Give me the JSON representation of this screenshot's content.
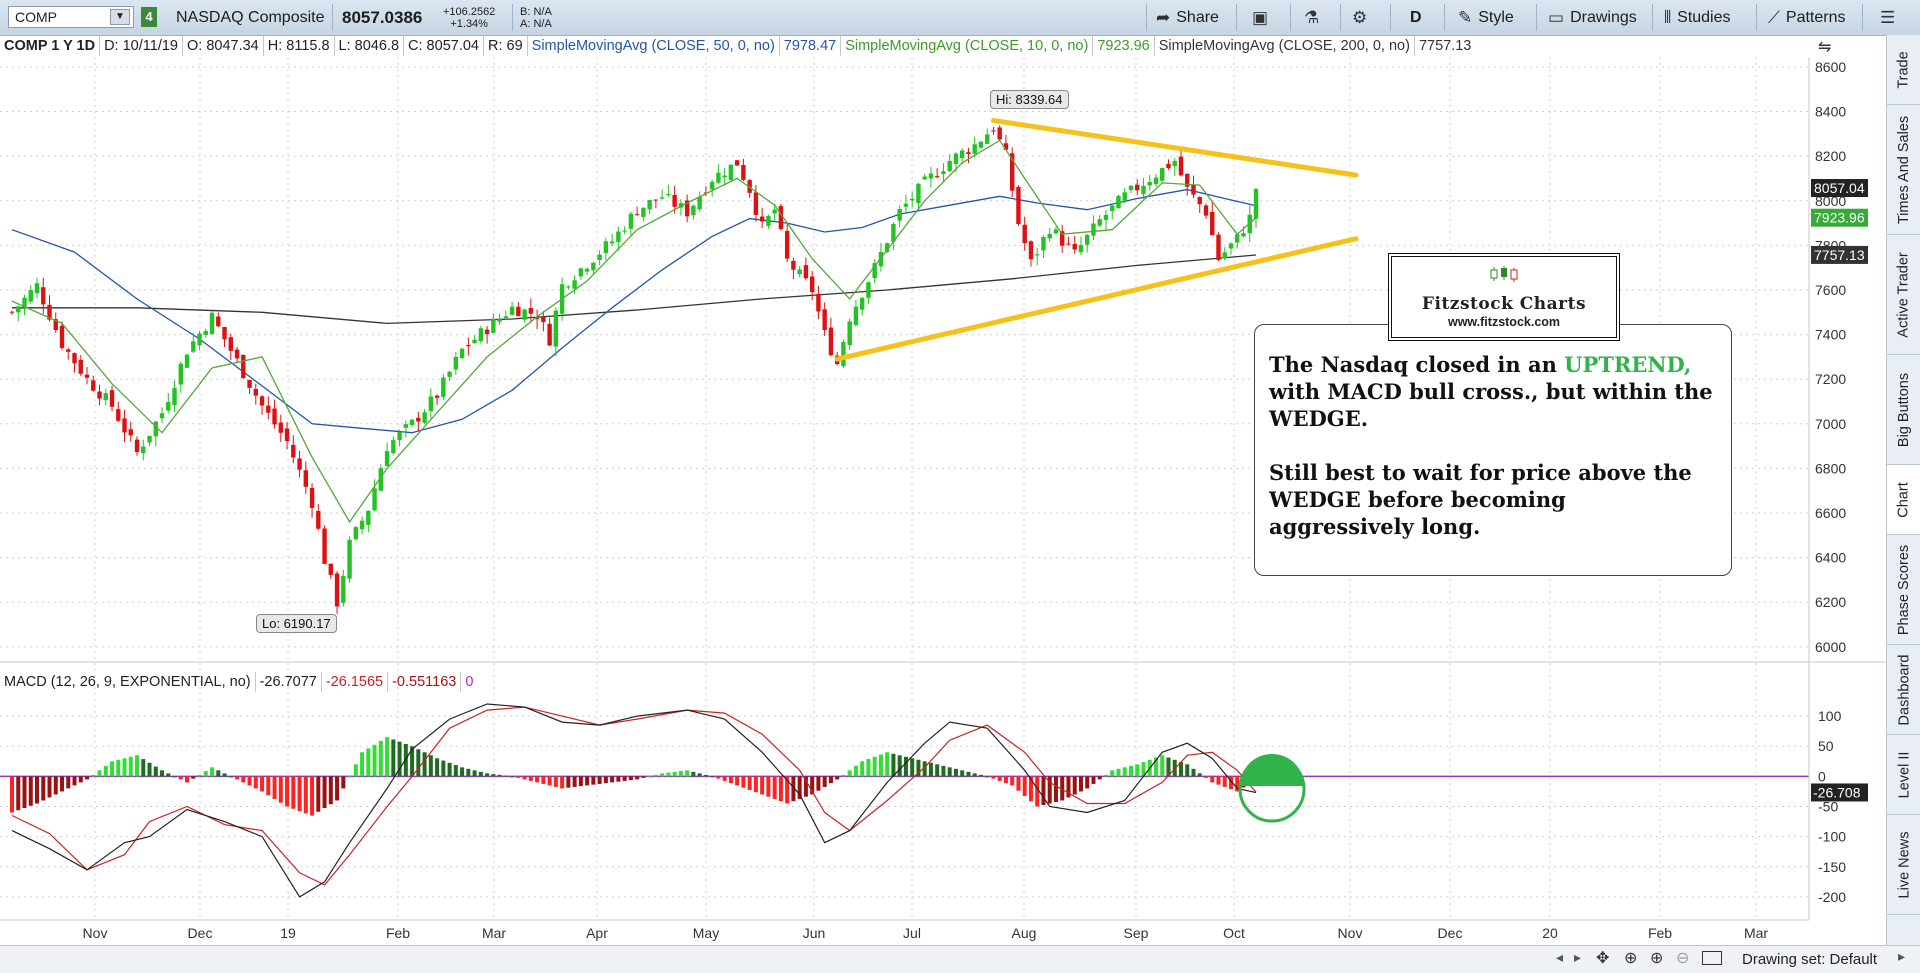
{
  "header": {
    "symbol": "COMP",
    "link_number": "4",
    "description": "NASDAQ Composite",
    "last_price": "8057.0386",
    "change_abs": "+106.2562",
    "change_pct": "+1.34%",
    "bid": "B: N/A",
    "ask": "A: N/A",
    "share_label": "Share",
    "period_label": "D",
    "style_label": "Style",
    "drawings_label": "Drawings",
    "studies_label": "Studies",
    "patterns_label": "Patterns"
  },
  "info": {
    "title": "COMP 1 Y 1D",
    "date": "D: 10/11/19",
    "open": "O: 8047.34",
    "high": "H: 8115.8",
    "low": "L: 8046.8",
    "close": "C: 8057.04",
    "range": "R: 69",
    "sma50_label": "SimpleMovingAvg (CLOSE, 50, 0, no)",
    "sma50_value": "7978.47",
    "sma10_label": "SimpleMovingAvg (CLOSE, 10, 0, no)",
    "sma10_value": "7923.96",
    "sma200_label": "SimpleMovingAvg (CLOSE, 200, 0, no)",
    "sma200_value": "7757.13"
  },
  "macd_info": {
    "label": "MACD (12, 26, 9, EXPONENTIAL, no)",
    "value": "-26.7077",
    "avg": "-26.1565",
    "diff": "-0.551163",
    "zero": "0"
  },
  "annotation": {
    "line1_pre": "The Nasdaq closed in an ",
    "line1_highlight": "UPTREND,",
    "line2": "with MACD bull cross., but within the WEDGE.",
    "line3": "Still best to wait for price above the WEDGE before becoming aggressively long."
  },
  "logo": {
    "title": "Fitzstock Charts",
    "url": "www.fitzstock.com"
  },
  "right_tabs": [
    "Trade",
    "Times And Sales",
    "Active Trader",
    "Big Buttons",
    "Chart",
    "Phase Scores",
    "Dashboard",
    "Level II",
    "Live News"
  ],
  "active_tab": "Chart",
  "bottom": {
    "drawing_set": "Drawing set: Default"
  },
  "colors": {
    "up": "#22c322",
    "down": "#dd1111",
    "sma50": "#2255aa",
    "sma10": "#55a83a",
    "sma200": "#333333",
    "wedge": "#f5c21b",
    "macd": "#222222",
    "macd_avg": "#cc2222",
    "zero_line": "#9933cc"
  },
  "chart_data": [
    {
      "type": "candlestick",
      "title": "",
      "x_tick_labels": [
        "Nov",
        "Dec",
        "19",
        "Feb",
        "Mar",
        "Apr",
        "May",
        "Jun",
        "Jul",
        "Aug",
        "Sep",
        "Oct",
        "Nov",
        "Dec",
        "20",
        "Feb",
        "Mar"
      ],
      "y_tick_labels": [
        "6000",
        "6200",
        "6400",
        "6600",
        "6800",
        "7000",
        "7200",
        "7400",
        "7600",
        "7800",
        "8000",
        "8200",
        "8400",
        "8600"
      ],
      "ylim": [
        5950,
        8640
      ],
      "high_label": "Hi: 8339.64",
      "low_label": "Lo: 6190.17",
      "price_badges": [
        {
          "value": "8057.04",
          "price": 8057.04,
          "bg": "#222222",
          "fg": "#ffffff"
        },
        {
          "value": "7923.96",
          "price": 7923.96,
          "bg": "#3aa83a",
          "fg": "#ffffff"
        },
        {
          "value": "7757.13",
          "price": 7757.13,
          "bg": "#333333",
          "fg": "#ffffff"
        }
      ],
      "close_path": [
        [
          0,
          7500
        ],
        [
          4,
          7620
        ],
        [
          8,
          7360
        ],
        [
          12,
          7200
        ],
        [
          16,
          7080
        ],
        [
          20,
          6870
        ],
        [
          24,
          7050
        ],
        [
          28,
          7330
        ],
        [
          32,
          7480
        ],
        [
          36,
          7280
        ],
        [
          40,
          7080
        ],
        [
          44,
          6920
        ],
        [
          48,
          6650
        ],
        [
          50,
          6390
        ],
        [
          52,
          6200
        ],
        [
          54,
          6460
        ],
        [
          57,
          6620
        ],
        [
          60,
          6900
        ],
        [
          64,
          7000
        ],
        [
          68,
          7130
        ],
        [
          72,
          7330
        ],
        [
          76,
          7430
        ],
        [
          80,
          7520
        ],
        [
          84,
          7490
        ],
        [
          86,
          7380
        ],
        [
          88,
          7620
        ],
        [
          92,
          7720
        ],
        [
          96,
          7820
        ],
        [
          100,
          7960
        ],
        [
          104,
          8020
        ],
        [
          108,
          7950
        ],
        [
          112,
          8100
        ],
        [
          116,
          8170
        ],
        [
          118,
          8050
        ],
        [
          120,
          7880
        ],
        [
          122,
          7960
        ],
        [
          124,
          7730
        ],
        [
          128,
          7600
        ],
        [
          130,
          7400
        ],
        [
          132,
          7270
        ],
        [
          134,
          7480
        ],
        [
          138,
          7700
        ],
        [
          142,
          7950
        ],
        [
          146,
          8080
        ],
        [
          150,
          8180
        ],
        [
          154,
          8250
        ],
        [
          157,
          8330
        ],
        [
          159,
          8200
        ],
        [
          161,
          7900
        ],
        [
          163,
          7720
        ],
        [
          166,
          7880
        ],
        [
          170,
          7760
        ],
        [
          174,
          7910
        ],
        [
          178,
          8020
        ],
        [
          182,
          8100
        ],
        [
          186,
          8180
        ],
        [
          188,
          8050
        ],
        [
          191,
          7950
        ],
        [
          193,
          7740
        ],
        [
          196,
          7830
        ],
        [
          198,
          7923
        ],
        [
          199,
          8057
        ]
      ],
      "sma10": [
        [
          0,
          7550
        ],
        [
          8,
          7450
        ],
        [
          16,
          7180
        ],
        [
          24,
          6960
        ],
        [
          32,
          7250
        ],
        [
          40,
          7300
        ],
        [
          48,
          6850
        ],
        [
          54,
          6560
        ],
        [
          60,
          6800
        ],
        [
          68,
          7050
        ],
        [
          76,
          7300
        ],
        [
          84,
          7480
        ],
        [
          92,
          7640
        ],
        [
          100,
          7870
        ],
        [
          108,
          7990
        ],
        [
          116,
          8100
        ],
        [
          122,
          7980
        ],
        [
          128,
          7740
        ],
        [
          134,
          7560
        ],
        [
          140,
          7780
        ],
        [
          146,
          8000
        ],
        [
          152,
          8170
        ],
        [
          158,
          8270
        ],
        [
          162,
          8100
        ],
        [
          168,
          7850
        ],
        [
          176,
          7870
        ],
        [
          184,
          8080
        ],
        [
          190,
          8070
        ],
        [
          196,
          7850
        ],
        [
          199,
          7924
        ]
      ],
      "sma50": [
        [
          0,
          7870
        ],
        [
          10,
          7770
        ],
        [
          20,
          7560
        ],
        [
          30,
          7380
        ],
        [
          40,
          7170
        ],
        [
          48,
          7000
        ],
        [
          56,
          6980
        ],
        [
          64,
          6960
        ],
        [
          72,
          7020
        ],
        [
          80,
          7150
        ],
        [
          88,
          7340
        ],
        [
          96,
          7520
        ],
        [
          104,
          7690
        ],
        [
          112,
          7840
        ],
        [
          118,
          7920
        ],
        [
          124,
          7900
        ],
        [
          130,
          7860
        ],
        [
          136,
          7880
        ],
        [
          142,
          7940
        ],
        [
          150,
          7980
        ],
        [
          158,
          8020
        ],
        [
          164,
          7990
        ],
        [
          172,
          7960
        ],
        [
          180,
          8010
        ],
        [
          188,
          8050
        ],
        [
          194,
          8010
        ],
        [
          199,
          7978
        ]
      ],
      "sma200": [
        [
          0,
          7520
        ],
        [
          20,
          7520
        ],
        [
          40,
          7500
        ],
        [
          60,
          7450
        ],
        [
          80,
          7470
        ],
        [
          100,
          7510
        ],
        [
          120,
          7560
        ],
        [
          140,
          7600
        ],
        [
          160,
          7650
        ],
        [
          180,
          7710
        ],
        [
          199,
          7757
        ]
      ],
      "wedge_upper": [
        [
          157,
          8360
        ],
        [
          215,
          8115
        ]
      ],
      "wedge_lower": [
        [
          132,
          7290
        ],
        [
          215,
          7830
        ]
      ]
    },
    {
      "type": "histogram+line",
      "title": "",
      "y_tick_labels": [
        "100",
        "50",
        "0",
        "-50",
        "-100",
        "-150",
        "-200"
      ],
      "ylim": [
        -230,
        135
      ],
      "current_badge": "-26.708",
      "histogram": [
        [
          0,
          -60
        ],
        [
          4,
          -45
        ],
        [
          8,
          -25
        ],
        [
          12,
          -5
        ],
        [
          16,
          25
        ],
        [
          20,
          35
        ],
        [
          24,
          10
        ],
        [
          28,
          -10
        ],
        [
          32,
          15
        ],
        [
          36,
          -5
        ],
        [
          40,
          -25
        ],
        [
          44,
          -50
        ],
        [
          48,
          -65
        ],
        [
          52,
          -40
        ],
        [
          56,
          40
        ],
        [
          60,
          65
        ],
        [
          64,
          50
        ],
        [
          68,
          30
        ],
        [
          72,
          15
        ],
        [
          76,
          5
        ],
        [
          80,
          0
        ],
        [
          84,
          -10
        ],
        [
          88,
          -20
        ],
        [
          92,
          -15
        ],
        [
          96,
          -10
        ],
        [
          100,
          -5
        ],
        [
          104,
          5
        ],
        [
          108,
          10
        ],
        [
          112,
          0
        ],
        [
          116,
          -15
        ],
        [
          120,
          -30
        ],
        [
          124,
          -45
        ],
        [
          128,
          -30
        ],
        [
          132,
          -5
        ],
        [
          136,
          25
        ],
        [
          140,
          40
        ],
        [
          144,
          30
        ],
        [
          148,
          20
        ],
        [
          152,
          10
        ],
        [
          156,
          0
        ],
        [
          160,
          -15
        ],
        [
          164,
          -50
        ],
        [
          168,
          -40
        ],
        [
          172,
          -20
        ],
        [
          176,
          10
        ],
        [
          180,
          20
        ],
        [
          184,
          35
        ],
        [
          188,
          20
        ],
        [
          192,
          -10
        ],
        [
          196,
          -25
        ],
        [
          199,
          -5
        ]
      ],
      "macd": [
        [
          0,
          -90
        ],
        [
          6,
          -120
        ],
        [
          12,
          -155
        ],
        [
          18,
          -110
        ],
        [
          22,
          -100
        ],
        [
          28,
          -55
        ],
        [
          34,
          -75
        ],
        [
          40,
          -100
        ],
        [
          46,
          -200
        ],
        [
          50,
          -175
        ],
        [
          54,
          -110
        ],
        [
          60,
          -20
        ],
        [
          64,
          45
        ],
        [
          70,
          95
        ],
        [
          76,
          120
        ],
        [
          82,
          115
        ],
        [
          88,
          90
        ],
        [
          94,
          85
        ],
        [
          100,
          100
        ],
        [
          108,
          110
        ],
        [
          114,
          95
        ],
        [
          120,
          40
        ],
        [
          126,
          -30
        ],
        [
          130,
          -110
        ],
        [
          134,
          -90
        ],
        [
          140,
          -10
        ],
        [
          146,
          55
        ],
        [
          150,
          90
        ],
        [
          156,
          80
        ],
        [
          162,
          10
        ],
        [
          166,
          -50
        ],
        [
          172,
          -60
        ],
        [
          178,
          -40
        ],
        [
          184,
          40
        ],
        [
          188,
          55
        ],
        [
          192,
          30
        ],
        [
          196,
          -20
        ],
        [
          199,
          -27
        ]
      ],
      "avg": [
        [
          0,
          -65
        ],
        [
          6,
          -95
        ],
        [
          12,
          -155
        ],
        [
          18,
          -130
        ],
        [
          22,
          -75
        ],
        [
          28,
          -50
        ],
        [
          34,
          -80
        ],
        [
          40,
          -90
        ],
        [
          46,
          -160
        ],
        [
          50,
          -180
        ],
        [
          54,
          -130
        ],
        [
          60,
          -50
        ],
        [
          64,
          0
        ],
        [
          70,
          80
        ],
        [
          76,
          110
        ],
        [
          82,
          115
        ],
        [
          88,
          100
        ],
        [
          94,
          85
        ],
        [
          100,
          95
        ],
        [
          108,
          110
        ],
        [
          114,
          105
        ],
        [
          120,
          70
        ],
        [
          126,
          10
        ],
        [
          130,
          -60
        ],
        [
          134,
          -90
        ],
        [
          140,
          -40
        ],
        [
          146,
          15
        ],
        [
          150,
          60
        ],
        [
          156,
          85
        ],
        [
          162,
          40
        ],
        [
          166,
          -10
        ],
        [
          172,
          -45
        ],
        [
          178,
          -45
        ],
        [
          184,
          -10
        ],
        [
          188,
          35
        ],
        [
          192,
          40
        ],
        [
          196,
          10
        ],
        [
          199,
          -26
        ]
      ]
    }
  ]
}
